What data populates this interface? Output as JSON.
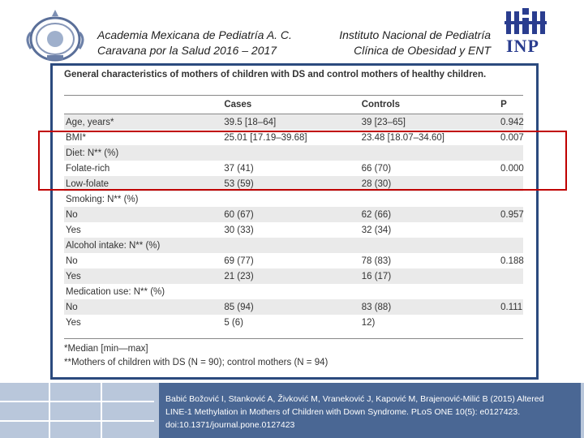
{
  "header": {
    "left_line1": "Academia Mexicana de Pediatría A. C.",
    "left_line2": "Caravana por la Salud 2016 – 2017",
    "right_line1": "Instituto Nacional de Pediatría",
    "right_line2": "Clínica de Obesidad y ENT",
    "inp_logo_text": "INP"
  },
  "table": {
    "title": "General characteristics of mothers of children with DS and control mothers of healthy children.",
    "columns": [
      "",
      "Cases",
      "Controls",
      "P"
    ],
    "rows": [
      {
        "label": "Age, years*",
        "cases": "39.5 [18–64]",
        "controls": "39 [23–65]",
        "p": "0.942"
      },
      {
        "label": "BMI*",
        "cases": "25.01 [17.19–39.68]",
        "controls": "23.48 [18.07–34.60]",
        "p": "0.007"
      },
      {
        "label": "Diet: N** (%)",
        "cases": "",
        "controls": "",
        "p": ""
      },
      {
        "label": "Folate-rich",
        "cases": "37 (41)",
        "controls": "66 (70)",
        "p": "0.000"
      },
      {
        "label": "Low-folate",
        "cases": "53 (59)",
        "controls": "28 (30)",
        "p": ""
      },
      {
        "label": "Smoking: N** (%)",
        "cases": "",
        "controls": "",
        "p": ""
      },
      {
        "label": "No",
        "cases": "60 (67)",
        "controls": "62 (66)",
        "p": "0.957"
      },
      {
        "label": "Yes",
        "cases": "30 (33)",
        "controls": "32 (34)",
        "p": ""
      },
      {
        "label": "Alcohol intake: N** (%)",
        "cases": "",
        "controls": "",
        "p": ""
      },
      {
        "label": "No",
        "cases": "69 (77)",
        "controls": "78 (83)",
        "p": "0.188"
      },
      {
        "label": "Yes",
        "cases": "21 (23)",
        "controls": "16 (17)",
        "p": ""
      },
      {
        "label": "Medication use: N** (%)",
        "cases": "",
        "controls": "",
        "p": ""
      },
      {
        "label": "No",
        "cases": "85 (94)",
        "controls": "83 (88)",
        "p": "0.111"
      },
      {
        "label": "Yes",
        "cases": "5 (6)",
        "controls": "12)",
        "p": ""
      }
    ],
    "footnote1": "*Median [min—max]",
    "footnote2": "**Mothers of children with DS (N = 90); control mothers (N = 94)"
  },
  "citation": {
    "line1": "Babić Božović I, Stanković A, Živković M, Vraneković J, Kapović M, Brajenović-Milić B (2015) Altered",
    "line2": "LINE-1 Methylation in Mothers of Children with Down Syndrome. PLoS ONE 10(5): e0127423.",
    "line3": "doi:10.1371/journal.pone.0127423"
  },
  "colors": {
    "frame": "#2b4a7e",
    "highlight": "#c00000",
    "citation_bg": "#4a6794",
    "band": "#b9c7db",
    "inp_blue": "#2a3d8f"
  }
}
